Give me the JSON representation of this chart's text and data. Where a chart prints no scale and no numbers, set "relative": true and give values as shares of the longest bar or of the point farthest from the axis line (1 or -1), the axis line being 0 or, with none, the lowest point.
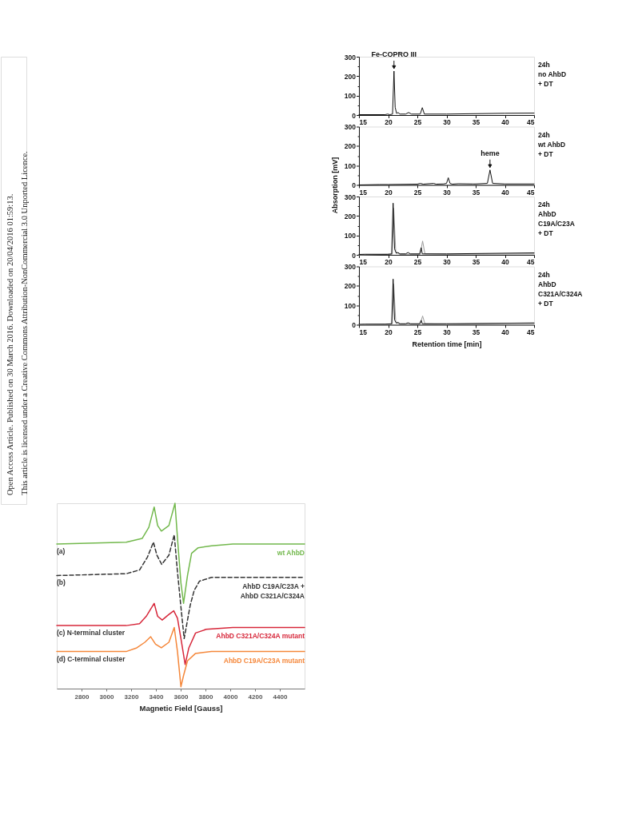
{
  "chart_data": [
    {
      "type": "other",
      "annotations": [
        "Open Access Article. Published on 30 March 2016. Downloaded on 20/04/2016 01:59:13.",
        "This article is licensed under a Creative Commons Attribution-NonCommercial 3.0 Unported Licence."
      ]
    },
    {
      "type": "line",
      "xlim": [
        15,
        45
      ],
      "xticks": [
        15,
        20,
        25,
        30,
        35,
        40,
        45
      ],
      "ylim": [
        0,
        300
      ],
      "yticks": [
        0,
        {
          "value": 50,
          "label": null
        },
        100,
        {
          "value": 150,
          "label": null
        },
        200,
        {
          "value": 250,
          "label": null
        },
        300
      ],
      "series": [
        {
          "color": "#111111",
          "x": [
            15,
            19.5,
            19.9,
            20.3,
            20.75,
            21.0,
            21.2,
            21.45,
            21.7,
            22.0,
            23.0,
            23.5,
            24.0,
            25.5,
            25.85,
            26.2,
            30,
            35,
            40,
            45
          ],
          "values": [
            2,
            2,
            5,
            2,
            5,
            226,
            40,
            8,
            13,
            5,
            5,
            13,
            5,
            5,
            38,
            5,
            5,
            7,
            9,
            10
          ]
        }
      ],
      "annotations": [
        "24h\nno AhbD\n+ DT",
        {
          "text": "Fe-COPRO III",
          "x": 21.0,
          "y": 226
        }
      ]
    },
    {
      "type": "line",
      "xlim": [
        15,
        45
      ],
      "xticks": [
        15,
        20,
        25,
        30,
        35,
        40,
        45
      ],
      "ylim": [
        0,
        300
      ],
      "yticks": [
        0,
        {
          "value": 50,
          "label": null
        },
        100,
        {
          "value": 150,
          "label": null
        },
        200,
        {
          "value": 250,
          "label": null
        },
        300
      ],
      "ylabel": "Absorption [mV]",
      "series": [
        {
          "color": "#111111",
          "x": [
            15,
            18.5,
            20,
            25,
            25.5,
            26,
            27.8,
            28.2,
            29.5,
            30.0,
            30.3,
            30.6,
            31,
            32,
            34.5,
            35,
            37.0,
            37.45,
            37.9,
            40,
            45
          ],
          "values": [
            0,
            2,
            2,
            4,
            8,
            4,
            8,
            4,
            5,
            8,
            37,
            8,
            4,
            6,
            5,
            5,
            8,
            77,
            8,
            5,
            5
          ]
        }
      ],
      "annotations": [
        "24h\nwt AhbD\n+ DT",
        {
          "text": "heme",
          "x": 37.45,
          "y": 77
        }
      ]
    },
    {
      "type": "line",
      "xlim": [
        15,
        45
      ],
      "xticks": [
        15,
        20,
        25,
        30,
        35,
        40,
        45
      ],
      "ylim": [
        0,
        300
      ],
      "yticks": [
        0,
        {
          "value": 50,
          "label": null
        },
        100,
        {
          "value": 150,
          "label": null
        },
        200,
        {
          "value": 250,
          "label": null
        },
        300
      ],
      "series": [
        {
          "color": "#9a9a9a",
          "x": [
            15,
            20.7,
            20.95,
            21.3,
            22,
            25.5,
            25.9,
            26.3,
            30,
            45
          ],
          "values": [
            0,
            3,
            240,
            15,
            3,
            3,
            71,
            5,
            3,
            5
          ]
        },
        {
          "color": "#111111",
          "x": [
            15,
            16,
            19.9,
            20.6,
            20.85,
            21.1,
            21.4,
            21.7,
            22.0,
            23.0,
            23.4,
            23.8,
            25.4,
            25.65,
            25.85,
            30,
            45
          ],
          "values": [
            2,
            3,
            3,
            5,
            266,
            30,
            8,
            12,
            5,
            5,
            12,
            5,
            5,
            37,
            5,
            5,
            10
          ]
        }
      ],
      "annotations": [
        "24h\nAhbD\nC19A/C23A\n+ DT"
      ]
    },
    {
      "type": "line",
      "xlim": [
        15,
        45
      ],
      "xticks": [
        15,
        20,
        25,
        30,
        35,
        40,
        45
      ],
      "ylim": [
        0,
        300
      ],
      "yticks": [
        0,
        {
          "value": 50,
          "label": null
        },
        100,
        {
          "value": 150,
          "label": null
        },
        200,
        {
          "value": 250,
          "label": null
        },
        300
      ],
      "xlabel": "Retention time [min]",
      "series": [
        {
          "color": "#9a9a9a",
          "x": [
            15,
            20.7,
            20.95,
            21.3,
            22,
            25.5,
            25.9,
            26.3,
            30,
            45
          ],
          "values": [
            0,
            3,
            210,
            15,
            3,
            3,
            45,
            5,
            3,
            10
          ]
        },
        {
          "color": "#111111",
          "x": [
            15,
            16,
            19.5,
            20.6,
            20.85,
            21.1,
            21.4,
            21.7,
            22.0,
            23.0,
            23.4,
            23.8,
            25.4,
            25.65,
            25.85,
            30,
            45
          ],
          "values": [
            2,
            3,
            3,
            5,
            235,
            25,
            8,
            12,
            5,
            5,
            10,
            5,
            5,
            23,
            5,
            5,
            8
          ]
        }
      ],
      "annotations": [
        "24h\nAhbD\nC321A/C324A\n+ DT"
      ]
    },
    {
      "type": "line",
      "relative": true,
      "xlim": [
        2600,
        4600
      ],
      "xticks": [
        2800,
        3000,
        3200,
        3400,
        3600,
        3800,
        4000,
        4200,
        4400
      ],
      "xlabel": "Magnetic Field [Gauss]",
      "series": [
        {
          "name": "wt AhbD",
          "color": "#72b84c",
          "x": [
            2600,
            3160,
            3289,
            3343,
            3386,
            3414,
            3444,
            3505,
            3554,
            3580,
            3602,
            3623,
            3655,
            3688,
            3741,
            3849,
            4021,
            4600
          ],
          "values": [
            0.78,
            0.79,
            0.81,
            0.87,
            0.98,
            0.88,
            0.85,
            0.88,
            1,
            0.76,
            0.57,
            0.46,
            0.61,
            0.73,
            0.76,
            0.77,
            0.78,
            0.78
          ]
        },
        {
          "name": "AhbD C19A/C23A +\nAhbD C321A/C324A",
          "color": "#333333",
          "line_style": "dashed",
          "x": [
            2600,
            3160,
            3268,
            3332,
            3380,
            3408,
            3447,
            3505,
            3548,
            3574,
            3602,
            3628,
            3677,
            3709,
            3752,
            3849,
            4600
          ],
          "values": [
            0.61,
            0.62,
            0.64,
            0.71,
            0.79,
            0.72,
            0.67,
            0.72,
            0.83,
            0.63,
            0.44,
            0.27,
            0.45,
            0.53,
            0.58,
            0.6,
            0.6
          ]
        },
        {
          "name": "AhbD C321A/C324A mutant",
          "color": "#d7283b",
          "x": [
            2600,
            3160,
            3268,
            3322,
            3386,
            3414,
            3451,
            3505,
            3544,
            3574,
            3602,
            3636,
            3666,
            3720,
            3806,
            4021,
            4600
          ],
          "values": [
            0.34,
            0.34,
            0.35,
            0.39,
            0.46,
            0.39,
            0.37,
            0.4,
            0.42,
            0.38,
            0.27,
            0.13,
            0.22,
            0.3,
            0.32,
            0.33,
            0.33
          ]
        },
        {
          "name": "AhbD C19A/C23A mutant",
          "color": "#f5873a",
          "x": [
            2600,
            3160,
            3246,
            3311,
            3358,
            3397,
            3444,
            3505,
            3548,
            3574,
            3602,
            3623,
            3655,
            3720,
            3849,
            4600
          ],
          "values": [
            0.2,
            0.2,
            0.22,
            0.25,
            0.28,
            0.24,
            0.22,
            0.25,
            0.33,
            0.2,
            0.01,
            0.07,
            0.15,
            0.19,
            0.2,
            0.2
          ]
        }
      ],
      "annotations": [
        "(a)",
        "(b)",
        "(c) N-terminal cluster",
        "(d) C-terminal cluster"
      ]
    }
  ]
}
